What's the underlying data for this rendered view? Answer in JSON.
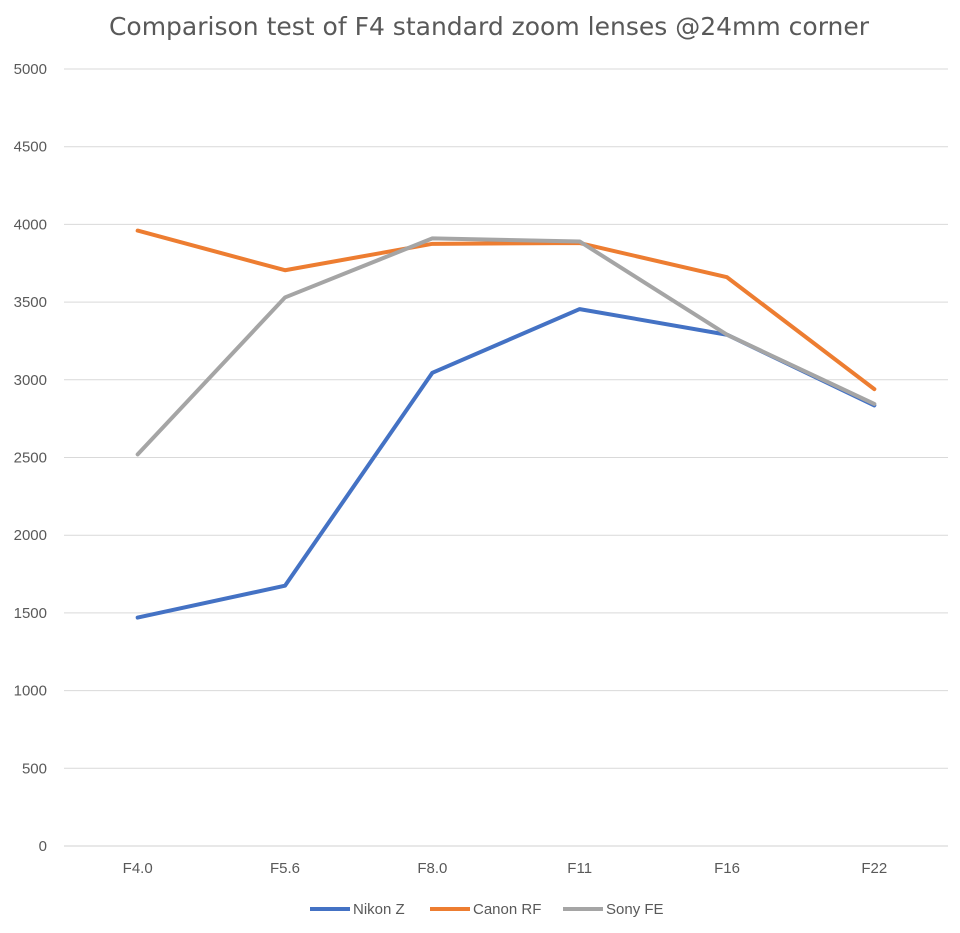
{
  "chart_data": {
    "type": "line",
    "title": "Comparison test of F4 standard zoom lenses @24mm corner",
    "xlabel": "",
    "ylabel": "",
    "categories": [
      "F4.0",
      "F5.6",
      "F8.0",
      "F11",
      "F16",
      "F22"
    ],
    "ylim": [
      0,
      5000
    ],
    "yticks": [
      0,
      500,
      1000,
      1500,
      2000,
      2500,
      3000,
      3500,
      4000,
      4500,
      5000
    ],
    "grid": true,
    "legend_position": "bottom",
    "series": [
      {
        "name": "Nikon Z",
        "color": "#4472C4",
        "values": [
          1470,
          1675,
          3045,
          3455,
          3290,
          2835
        ]
      },
      {
        "name": "Canon RF",
        "color": "#ED7D31",
        "values": [
          3960,
          3705,
          3875,
          3880,
          3660,
          2940
        ]
      },
      {
        "name": "Sony FE",
        "color": "#A5A5A5",
        "values": [
          2520,
          3530,
          3910,
          3890,
          3290,
          2845
        ]
      }
    ]
  }
}
